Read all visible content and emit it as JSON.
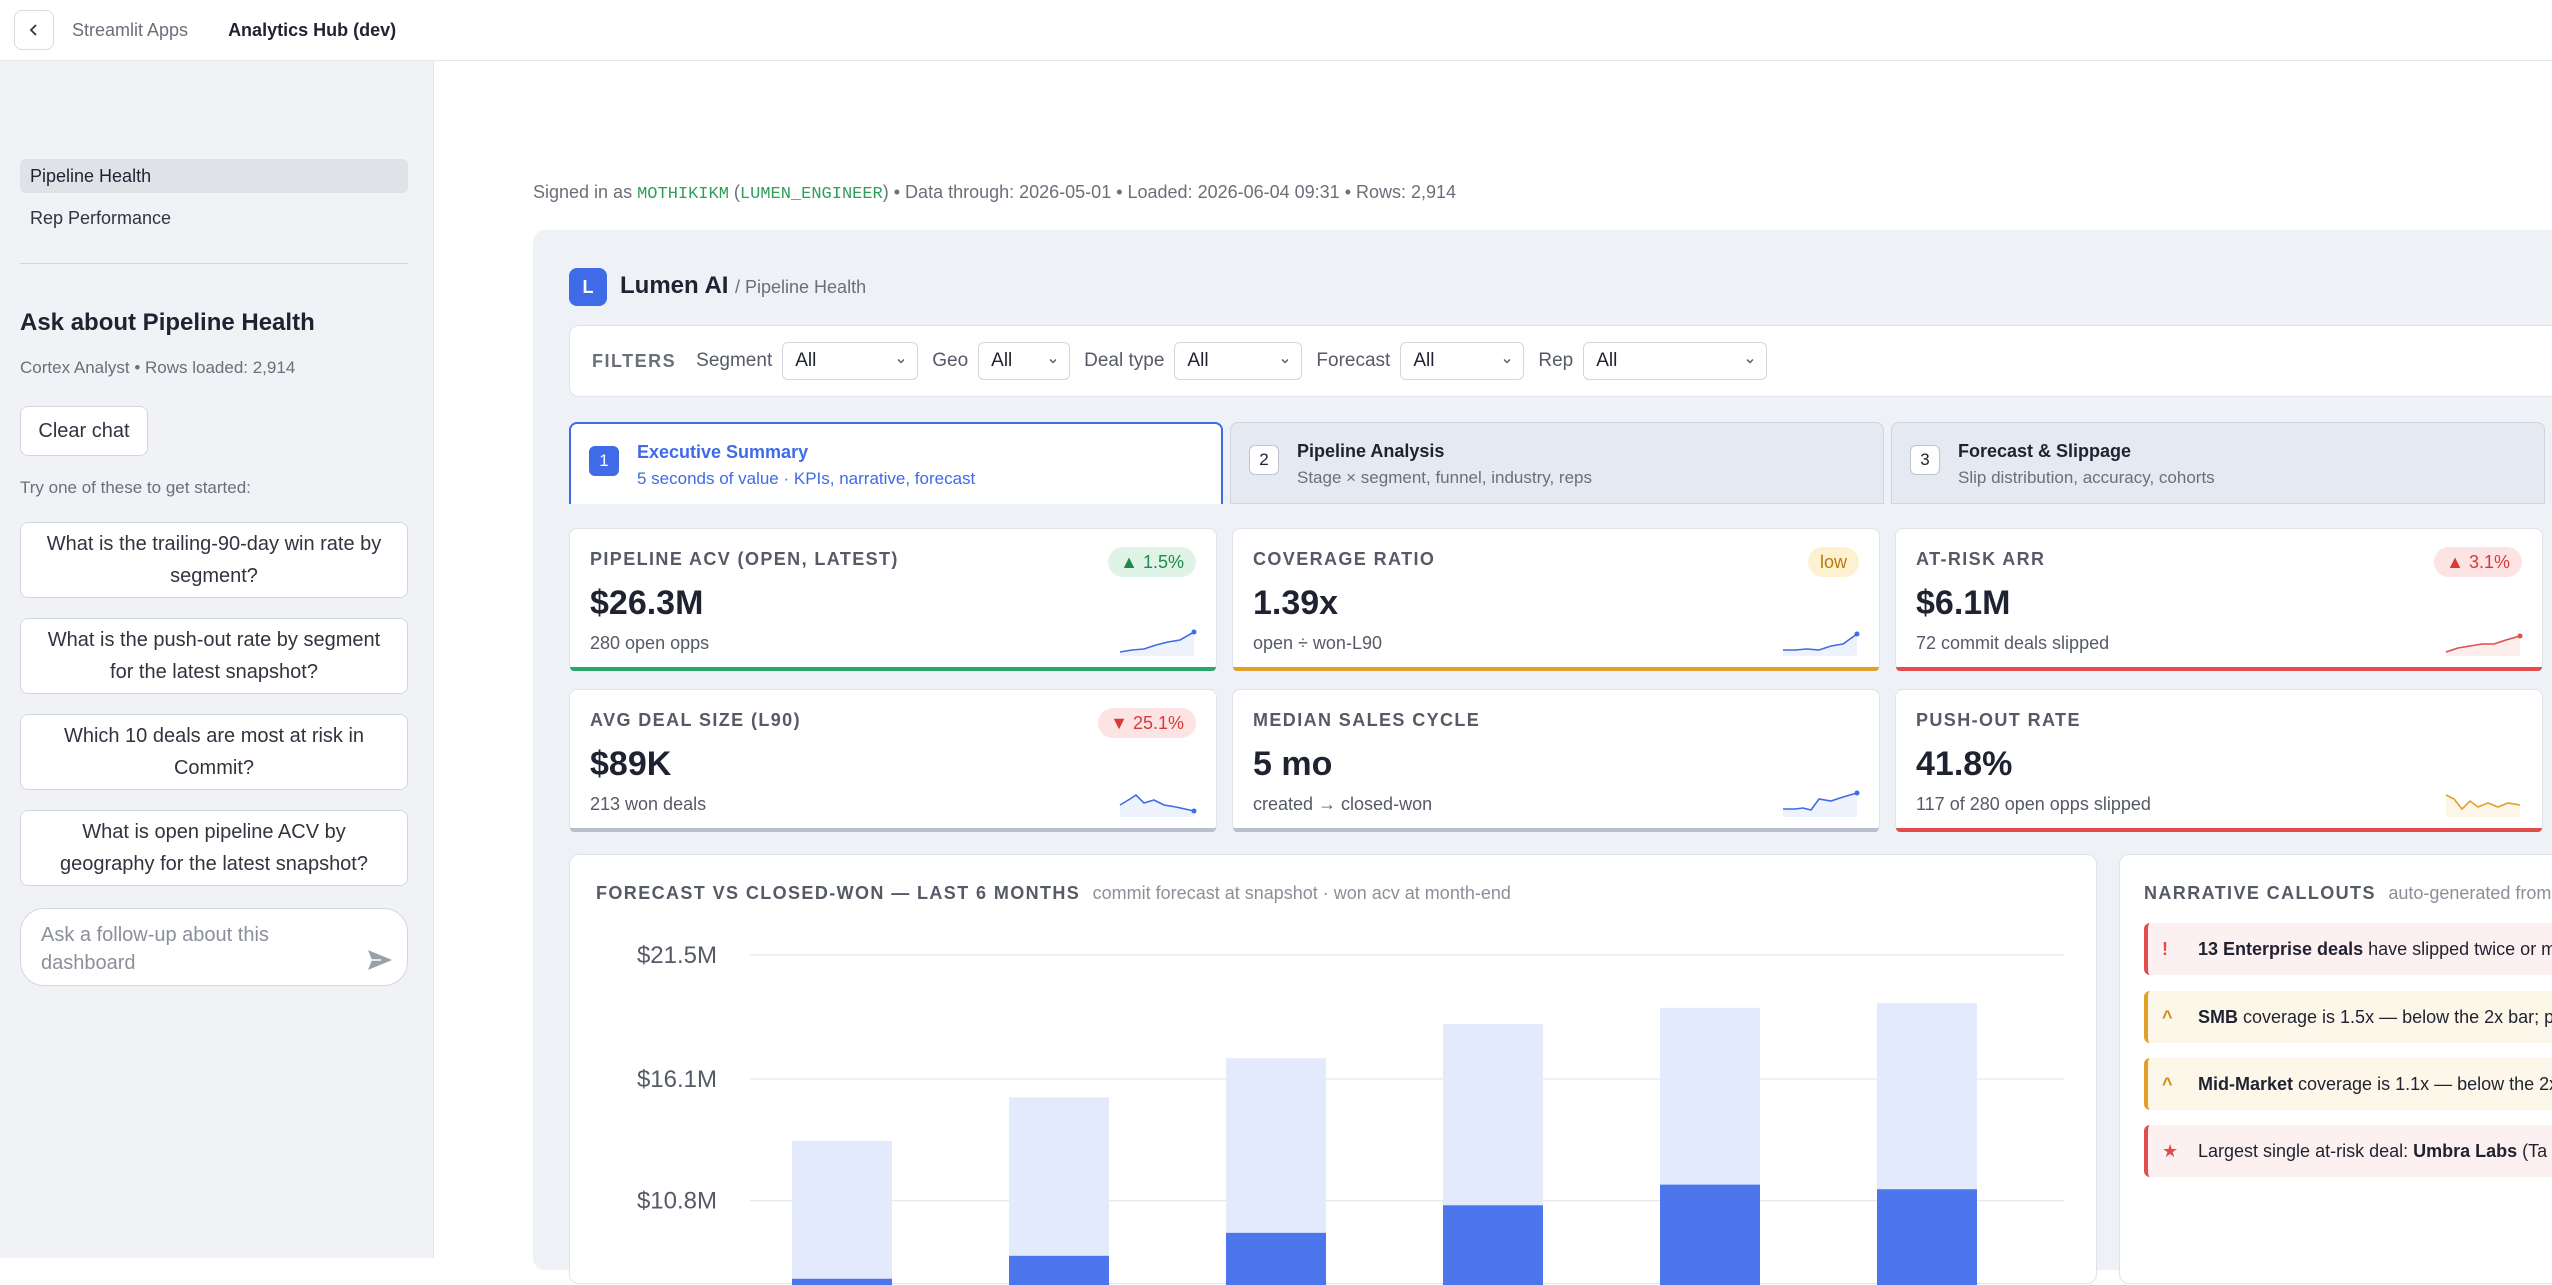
{
  "topbar": {
    "root": "Streamlit Apps",
    "app": "Analytics Hub (dev)"
  },
  "sidebar": {
    "nav": [
      {
        "label": "Pipeline Health",
        "active": true
      },
      {
        "label": "Rep Performance",
        "active": false
      }
    ],
    "heading": "Ask about Pipeline Health",
    "meta": "Cortex Analyst • Rows loaded: 2,914",
    "clear_label": "Clear chat",
    "hint": "Try one of these to get started:",
    "suggestions": [
      "What is the trailing-90-day win rate by segment?",
      "What is the push-out rate by segment for the latest snapshot?",
      "Which 10 deals are most at risk in Commit?",
      "What is open pipeline ACV by geography for the latest snapshot?"
    ],
    "chat_placeholder": "Ask a follow-up about this dashboard"
  },
  "meta": {
    "prefix": "Signed in as",
    "user": "MOTHIKIKM",
    "role": "LUMEN_ENGINEER",
    "rest": "• Data through: 2026-05-01 • Loaded: 2026-06-04 09:31 • Rows: 2,914"
  },
  "brand": {
    "badge": "L",
    "name": "Lumen AI",
    "path": "/ Pipeline Health",
    "color": "#3f6ae8"
  },
  "filters": {
    "title": "FILTERS",
    "items": [
      {
        "label": "Segment",
        "value": "All"
      },
      {
        "label": "Geo",
        "value": "All"
      },
      {
        "label": "Deal type",
        "value": "All"
      },
      {
        "label": "Forecast",
        "value": "All"
      },
      {
        "label": "Rep",
        "value": "All"
      }
    ]
  },
  "tabs": [
    {
      "num": "1",
      "title": "Executive Summary",
      "sub": "5 seconds of value · KPIs, narrative, forecast",
      "active": true
    },
    {
      "num": "2",
      "title": "Pipeline Analysis",
      "sub": "Stage × segment, funnel, industry, reps",
      "active": false
    },
    {
      "num": "3",
      "title": "Forecast & Slippage",
      "sub": "Slip distribution, accuracy, cohorts",
      "active": false
    }
  ],
  "kpis": [
    {
      "label": "PIPELINE ACV (OPEN, LATEST)",
      "value": "$26.3M",
      "sub": "280 open opps",
      "badge": "▲ 1.5%",
      "tone": "green",
      "accent": "#2aa76a"
    },
    {
      "label": "COVERAGE RATIO",
      "value": "1.39x",
      "sub": "open ÷ won-L90",
      "badge": "low",
      "tone": "amber",
      "accent": "#e0a02a"
    },
    {
      "label": "AT-RISK ARR",
      "value": "$6.1M",
      "sub": "72 commit deals slipped",
      "badge": "▲ 3.1%",
      "tone": "red",
      "accent": "#e14c4c"
    },
    {
      "label": "AVG DEAL SIZE (L90)",
      "value": "$89K",
      "sub": "213 won deals",
      "badge": "▼ 25.1%",
      "tone": "red",
      "accent": "#b9bfcc"
    },
    {
      "label": "MEDIAN SALES CYCLE",
      "value": "5 mo",
      "sub": "created → closed-won",
      "badge": "",
      "tone": "",
      "accent": "#b9bfcc"
    },
    {
      "label": "PUSH-OUT RATE",
      "value": "41.8%",
      "sub": "117 of 280 open opps slipped",
      "badge": "",
      "tone": "",
      "accent": "#e14c4c"
    }
  ],
  "chart": {
    "title": "FORECAST VS CLOSED-WON — LAST 6 MONTHS",
    "subtitle": "commit forecast at snapshot · won acv at month-end"
  },
  "chart_data": {
    "type": "bar",
    "categories": [
      "",
      "",
      "",
      "",
      "",
      ""
    ],
    "ticks": [
      "$21.5M",
      "$16.1M",
      "$10.8M"
    ],
    "tick_values": [
      21.5,
      16.1,
      10.8
    ],
    "ylim": [
      6.5,
      21.5
    ],
    "series": [
      {
        "values": [
          13.4,
          15.3,
          17.0,
          18.5,
          19.2,
          19.4
        ],
        "color": "#e3eafb"
      },
      {
        "values": [
          7.4,
          8.4,
          9.4,
          10.6,
          11.5,
          11.3
        ],
        "color": "#4d76ec"
      }
    ]
  },
  "narrative": {
    "title": "NARRATIVE CALLOUTS",
    "subtitle": "auto-generated from",
    "callouts": [
      {
        "icon": "!",
        "tone": "red",
        "bold": "13 Enterprise deals",
        "text": " have slipped twice or m"
      },
      {
        "icon": "^",
        "tone": "amber",
        "bold": "SMB",
        "text": " coverage is 1.5x — below the 2x bar; p"
      },
      {
        "icon": "^",
        "tone": "amber",
        "bold": "Mid-Market",
        "text": " coverage is 1.1x — below the 2x"
      },
      {
        "icon": "★",
        "tone": "red",
        "pre": "Largest single at-risk deal: ",
        "bold": "Umbra Labs",
        "text": " (Ta"
      }
    ]
  }
}
